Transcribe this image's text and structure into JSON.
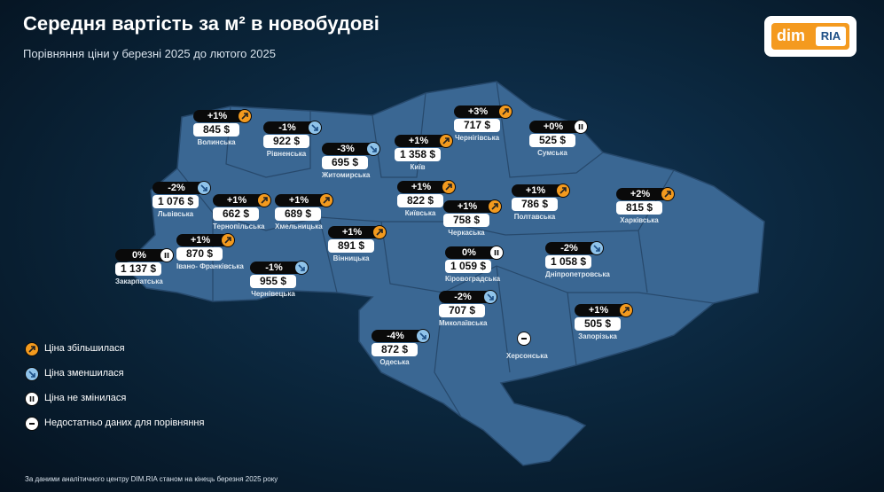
{
  "header": {
    "title": "Середня вартість за м² в новобудові",
    "subtitle": "Порівняння ціни у березні 2025 до лютого 2025",
    "logo_left": "dim",
    "logo_right": "RIA"
  },
  "regions": [
    {
      "name": "Волинська",
      "change": "+1%",
      "price": "845 $",
      "trend": "up"
    },
    {
      "name": "Рівненська",
      "change": "-1%",
      "price": "922 $",
      "trend": "down"
    },
    {
      "name": "Житомирська",
      "change": "-3%",
      "price": "695 $",
      "trend": "down"
    },
    {
      "name": "Київ",
      "change": "+1%",
      "price": "1 358 $",
      "trend": "up"
    },
    {
      "name": "Чернігівська",
      "change": "+3%",
      "price": "717 $",
      "trend": "up"
    },
    {
      "name": "Сумська",
      "change": "+0%",
      "price": "525 $",
      "trend": "same"
    },
    {
      "name": "Львівська",
      "change": "-2%",
      "price": "1 076 $",
      "trend": "down"
    },
    {
      "name": "Тернопільська",
      "change": "+1%",
      "price": "662 $",
      "trend": "up"
    },
    {
      "name": "Хмельницька",
      "change": "+1%",
      "price": "689 $",
      "trend": "up"
    },
    {
      "name": "Київська",
      "change": "+1%",
      "price": "822 $",
      "trend": "up"
    },
    {
      "name": "Черкаська",
      "change": "+1%",
      "price": "758 $",
      "trend": "up"
    },
    {
      "name": "Полтавська",
      "change": "+1%",
      "price": "786 $",
      "trend": "up"
    },
    {
      "name": "Харківська",
      "change": "+2%",
      "price": "815 $",
      "trend": "up"
    },
    {
      "name": "Закарпатська",
      "change": "0%",
      "price": "1 137 $",
      "trend": "same"
    },
    {
      "name": "Івано- Франківська",
      "change": "+1%",
      "price": "870 $",
      "trend": "up"
    },
    {
      "name": "Вінницька",
      "change": "+1%",
      "price": "891 $",
      "trend": "up"
    },
    {
      "name": "Чернівецька",
      "change": "-1%",
      "price": "955 $",
      "trend": "down"
    },
    {
      "name": "Кіровоградська",
      "change": "0%",
      "price": "1 059 $",
      "trend": "same"
    },
    {
      "name": "Дніпропетровська",
      "change": "-2%",
      "price": "1 058 $",
      "trend": "down"
    },
    {
      "name": "Миколаївська",
      "change": "-2%",
      "price": "707 $",
      "trend": "down"
    },
    {
      "name": "Одеська",
      "change": "-4%",
      "price": "872 $",
      "trend": "down"
    },
    {
      "name": "Запорізька",
      "change": "+1%",
      "price": "505 $",
      "trend": "up"
    },
    {
      "name": "Херсонська",
      "trend": "none"
    }
  ],
  "legend": [
    {
      "label": "Ціна збільшилася",
      "trend": "up"
    },
    {
      "label": "Ціна зменшилася",
      "trend": "down"
    },
    {
      "label": "Ціна не змінилася",
      "trend": "same"
    },
    {
      "label": "Недостатньо даних для порівняння",
      "trend": "none"
    }
  ],
  "footer": "За даними аналітичного центру DIM.RIA станом на кінець березня 2025 року"
}
